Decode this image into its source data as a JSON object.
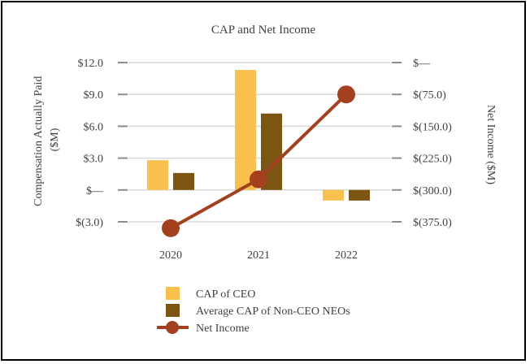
{
  "chart_data": {
    "type": "bar+line",
    "title": "CAP and Net Income",
    "categories": [
      "2020",
      "2021",
      "2022"
    ],
    "series": [
      {
        "name": "CAP of CEO",
        "type": "bar",
        "axis": "left",
        "color": "#F9C04D",
        "values": [
          2.8,
          11.3,
          -1.0
        ]
      },
      {
        "name": "Average CAP of Non-CEO NEOs",
        "type": "bar",
        "axis": "left",
        "color": "#7B5511",
        "values": [
          1.6,
          7.2,
          -1.0
        ]
      },
      {
        "name": "Net Income",
        "type": "line",
        "axis": "right",
        "color": "#A5401F",
        "values": [
          -390,
          -275,
          -75
        ]
      }
    ],
    "left_axis": {
      "label": "Compensation Actually Paid ($M)",
      "label_lines": [
        "Compensation Actually Paid",
        "($M)"
      ],
      "min": -3,
      "max": 12,
      "ticks": [
        12,
        9,
        6,
        3,
        0,
        -3
      ],
      "tick_labels": [
        "$12.0",
        "$9.0",
        "$6.0",
        "$3.0",
        "$—",
        "$(3.0)"
      ]
    },
    "right_axis": {
      "label": "Net Income ($M)",
      "min": -375,
      "max": 0,
      "ticks": [
        0,
        -75,
        -150,
        -225,
        -300,
        -375
      ],
      "tick_labels": [
        "$—",
        "$(75.0)",
        "$(150.0)",
        "$(225.0)",
        "$(300.0)",
        "$(375.0)"
      ]
    },
    "grid": true,
    "legend_position": "bottom"
  }
}
